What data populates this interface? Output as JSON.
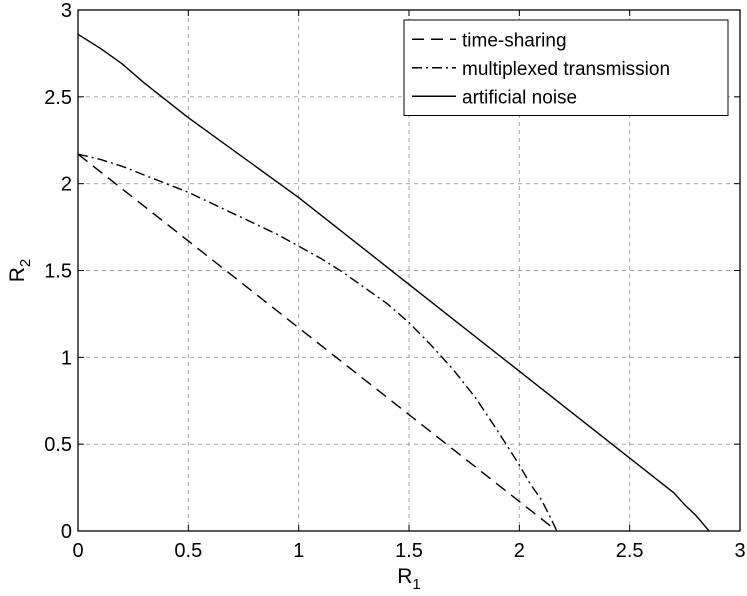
{
  "chart_data": {
    "type": "line",
    "title": "",
    "xlabel": "R",
    "xlabel_sub": "1",
    "ylabel": "R",
    "ylabel_sub": "2",
    "xlim": [
      0,
      3
    ],
    "ylim": [
      0,
      3
    ],
    "xticks": [
      0,
      0.5,
      1,
      1.5,
      2,
      2.5,
      3
    ],
    "yticks": [
      0,
      0.5,
      1,
      1.5,
      2,
      2.5,
      3
    ],
    "xtick_labels": [
      "0",
      "0.5",
      "1",
      "1.5",
      "2",
      "2.5",
      "3"
    ],
    "ytick_labels": [
      "0",
      "0.5",
      "1",
      "1.5",
      "2",
      "2.5",
      "3"
    ],
    "grid": true,
    "legend_position": "top-right",
    "series": [
      {
        "name": "time-sharing",
        "style": "dashed",
        "color": "#000000",
        "x": [
          0,
          2.17
        ],
        "y": [
          2.17,
          0
        ]
      },
      {
        "name": "multiplexed transmission",
        "style": "dashdot",
        "color": "#000000",
        "x": [
          0,
          0.1,
          0.2,
          0.3,
          0.4,
          0.5,
          0.6,
          0.7,
          0.8,
          0.9,
          1.0,
          1.1,
          1.2,
          1.3,
          1.4,
          1.5,
          1.6,
          1.7,
          1.8,
          1.9,
          2.0,
          2.05,
          2.1,
          2.14,
          2.17
        ],
        "y": [
          2.17,
          2.14,
          2.1,
          2.05,
          2.0,
          1.95,
          1.89,
          1.83,
          1.77,
          1.71,
          1.64,
          1.57,
          1.49,
          1.4,
          1.31,
          1.2,
          1.07,
          0.93,
          0.77,
          0.58,
          0.38,
          0.27,
          0.18,
          0.08,
          0
        ]
      },
      {
        "name": "artificial noise",
        "style": "solid",
        "color": "#000000",
        "x": [
          0,
          0.1,
          0.2,
          0.3,
          0.5,
          1.0,
          1.5,
          2.0,
          2.5,
          2.6,
          2.7,
          2.75,
          2.8,
          2.84,
          2.86
        ],
        "y": [
          2.86,
          2.78,
          2.69,
          2.58,
          2.38,
          1.92,
          1.42,
          0.92,
          0.42,
          0.32,
          0.22,
          0.15,
          0.09,
          0.03,
          0
        ]
      }
    ]
  }
}
